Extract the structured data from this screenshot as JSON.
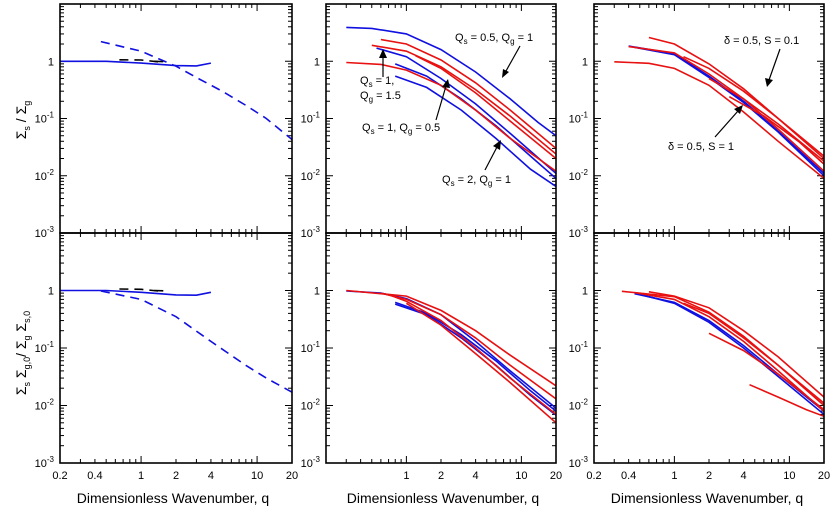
{
  "figure": {
    "xlabel": "Dimensionless Wavenumber, q",
    "ylabel_top": "Σs / Σg",
    "ylabel_bottom": "Σs Σg,0 / Σg Σs,0",
    "colors": {
      "blue": "#1010e0",
      "red": "#e81010",
      "black": "#000000"
    }
  },
  "chart_data": [
    {
      "id": "top-left",
      "type": "line",
      "xscale": "log",
      "yscale": "log",
      "xlim": [
        0.2,
        20
      ],
      "ylim": [
        0.001,
        10
      ],
      "xticks": [],
      "yticks": [
        "10-3",
        "10-2",
        "10-1",
        "1"
      ],
      "series": [
        {
          "style": "solid",
          "color": "blue",
          "x": [
            0.2,
            0.5,
            1,
            2,
            3,
            4
          ],
          "y": [
            1.0,
            1.0,
            0.93,
            0.84,
            0.83,
            0.93
          ]
        },
        {
          "style": "dashed",
          "color": "blue",
          "x": [
            0.45,
            1,
            1.5,
            2,
            3,
            5,
            8,
            12,
            20
          ],
          "y": [
            2.2,
            1.5,
            1.05,
            0.82,
            0.52,
            0.3,
            0.17,
            0.1,
            0.043
          ]
        },
        {
          "style": "dashed",
          "color": "black",
          "x": [
            0.65,
            1,
            1.4
          ],
          "y": [
            1.06,
            1.05,
            0.98
          ]
        },
        {
          "style": "dashed",
          "color": "black",
          "x": [
            1.3,
            1.7
          ],
          "y": [
            1.0,
            0.98
          ]
        }
      ]
    },
    {
      "id": "top-middle",
      "type": "line",
      "xscale": "log",
      "yscale": "log",
      "xlim": [
        0.2,
        20
      ],
      "ylim": [
        0.001,
        10
      ],
      "xticks": [],
      "yticks": [
        "10-3",
        "10-2",
        "10-1",
        "1"
      ],
      "series": [
        {
          "color": "blue",
          "x": [
            0.3,
            0.5,
            1,
            2,
            4,
            8,
            14,
            20
          ],
          "y": [
            3.9,
            3.75,
            3.0,
            1.6,
            0.65,
            0.22,
            0.085,
            0.05
          ]
        },
        {
          "color": "blue",
          "x": [
            0.55,
            1,
            2,
            4,
            8,
            20
          ],
          "y": [
            1.7,
            1.2,
            0.5,
            0.18,
            0.055,
            0.011
          ]
        },
        {
          "color": "blue",
          "x": [
            0.8,
            1.5,
            3,
            6,
            12,
            20
          ],
          "y": [
            0.9,
            0.55,
            0.22,
            0.075,
            0.022,
            0.009
          ]
        },
        {
          "color": "blue",
          "x": [
            0.8,
            1.5,
            3,
            6,
            12,
            20
          ],
          "y": [
            0.55,
            0.35,
            0.14,
            0.045,
            0.013,
            0.0065
          ]
        },
        {
          "color": "red",
          "x": [
            0.3,
            0.6,
            1,
            2,
            4,
            8,
            20
          ],
          "y": [
            0.95,
            0.88,
            0.7,
            0.38,
            0.14,
            0.045,
            0.012
          ]
        },
        {
          "color": "red",
          "x": [
            0.5,
            1,
            2,
            4,
            8,
            20
          ],
          "y": [
            1.9,
            1.5,
            0.8,
            0.32,
            0.11,
            0.024
          ]
        },
        {
          "color": "red",
          "x": [
            0.6,
            1,
            2,
            4,
            8,
            20
          ],
          "y": [
            2.4,
            2.0,
            1.05,
            0.42,
            0.14,
            0.03
          ]
        },
        {
          "color": "red",
          "x": [
            1.2,
            2,
            4,
            8,
            20
          ],
          "y": [
            1.25,
            0.75,
            0.28,
            0.09,
            0.02
          ]
        }
      ],
      "annotations": [
        "Qs = 0.5, Qg = 1",
        "Qs = 1, Qg = 1.5",
        "Qs = 1, Qg = 0.5",
        "Qs = 2, Qg = 1"
      ]
    },
    {
      "id": "top-right",
      "type": "line",
      "xscale": "log",
      "yscale": "log",
      "xlim": [
        0.2,
        20
      ],
      "ylim": [
        0.001,
        10
      ],
      "xticks": [],
      "yticks": [
        "10-3",
        "10-2",
        "10-1",
        "1"
      ],
      "series": [
        {
          "color": "blue",
          "x": [
            0.4,
            1,
            2,
            4,
            8,
            20
          ],
          "y": [
            1.85,
            1.35,
            0.55,
            0.2,
            0.06,
            0.011
          ]
        },
        {
          "color": "blue",
          "x": [
            0.45,
            1,
            2,
            4,
            8,
            20
          ],
          "y": [
            1.75,
            1.3,
            0.52,
            0.19,
            0.058,
            0.01
          ]
        },
        {
          "color": "red",
          "x": [
            0.3,
            0.6,
            1,
            2,
            4,
            8,
            20
          ],
          "y": [
            0.98,
            0.92,
            0.75,
            0.38,
            0.13,
            0.04,
            0.009
          ]
        },
        {
          "color": "red",
          "x": [
            0.4,
            1,
            2,
            4,
            8,
            20
          ],
          "y": [
            1.8,
            1.4,
            0.6,
            0.22,
            0.065,
            0.012
          ]
        },
        {
          "color": "red",
          "x": [
            0.6,
            1,
            2,
            4,
            8,
            20
          ],
          "y": [
            2.6,
            2.0,
            0.9,
            0.33,
            0.1,
            0.02
          ]
        },
        {
          "color": "red",
          "x": [
            1.2,
            2,
            4,
            8,
            20
          ],
          "y": [
            1.2,
            0.75,
            0.3,
            0.1,
            0.022
          ]
        },
        {
          "color": "red",
          "x": [
            2,
            4,
            8,
            20
          ],
          "y": [
            0.5,
            0.22,
            0.08,
            0.018
          ]
        },
        {
          "color": "red",
          "x": [
            3,
            6,
            12,
            20
          ],
          "y": [
            0.24,
            0.11,
            0.04,
            0.016
          ]
        }
      ],
      "annotations": [
        "δ = 0.5, S = 0.1",
        "δ = 0.5, S = 1"
      ]
    },
    {
      "id": "bottom-left",
      "type": "line",
      "xscale": "log",
      "yscale": "log",
      "xlim": [
        0.2,
        20
      ],
      "ylim": [
        0.001,
        10
      ],
      "xticks": [
        "0.2",
        "0.4",
        "1",
        "2",
        "4",
        "10",
        "20"
      ],
      "yticks": [
        "10-3",
        "10-2",
        "10-1",
        "1"
      ],
      "series": [
        {
          "style": "solid",
          "color": "blue",
          "x": [
            0.2,
            0.5,
            1,
            2,
            3,
            4
          ],
          "y": [
            1.0,
            1.0,
            0.93,
            0.84,
            0.83,
            0.93
          ]
        },
        {
          "style": "dashed",
          "color": "blue",
          "x": [
            0.45,
            1,
            2,
            4,
            8,
            12,
            20
          ],
          "y": [
            0.98,
            0.7,
            0.35,
            0.13,
            0.05,
            0.03,
            0.017
          ]
        },
        {
          "style": "dashed",
          "color": "black",
          "x": [
            0.65,
            1,
            1.4
          ],
          "y": [
            1.06,
            1.05,
            0.98
          ]
        },
        {
          "style": "dashed",
          "color": "black",
          "x": [
            1.3,
            1.7
          ],
          "y": [
            1.0,
            0.98
          ]
        }
      ]
    },
    {
      "id": "bottom-middle",
      "type": "line",
      "xscale": "log",
      "yscale": "log",
      "xlim": [
        0.2,
        20
      ],
      "ylim": [
        0.001,
        10
      ],
      "xticks": [
        "1",
        "2",
        "4",
        "10",
        "20"
      ],
      "yticks": [
        "10-3",
        "10-2",
        "10-1",
        "1"
      ],
      "series": [
        {
          "color": "blue",
          "x": [
            0.3,
            0.6,
            1,
            2,
            4,
            8,
            20
          ],
          "y": [
            0.98,
            0.9,
            0.72,
            0.38,
            0.13,
            0.04,
            0.009
          ]
        },
        {
          "color": "blue",
          "x": [
            0.8,
            1.5,
            3,
            6,
            12,
            20
          ],
          "y": [
            0.62,
            0.4,
            0.17,
            0.06,
            0.018,
            0.008
          ]
        },
        {
          "color": "blue",
          "x": [
            0.8,
            1.5,
            3,
            6,
            12,
            20
          ],
          "y": [
            0.58,
            0.38,
            0.15,
            0.05,
            0.015,
            0.0068
          ]
        },
        {
          "color": "red",
          "x": [
            0.3,
            1,
            2,
            4,
            8,
            20
          ],
          "y": [
            1.0,
            0.8,
            0.45,
            0.2,
            0.075,
            0.022
          ]
        },
        {
          "color": "red",
          "x": [
            0.6,
            1,
            2,
            4,
            8,
            20
          ],
          "y": [
            0.9,
            0.7,
            0.38,
            0.15,
            0.05,
            0.013
          ]
        },
        {
          "color": "red",
          "x": [
            0.7,
            1,
            2,
            4,
            8,
            20
          ],
          "y": [
            0.85,
            0.65,
            0.3,
            0.1,
            0.03,
            0.007
          ]
        },
        {
          "color": "red",
          "x": [
            1.0,
            2,
            4,
            8,
            20
          ],
          "y": [
            0.6,
            0.25,
            0.08,
            0.025,
            0.005
          ]
        }
      ]
    },
    {
      "id": "bottom-right",
      "type": "line",
      "xscale": "log",
      "yscale": "log",
      "xlim": [
        0.2,
        20
      ],
      "ylim": [
        0.001,
        10
      ],
      "xticks": [
        "0.2",
        "0.4",
        "1",
        "2",
        "4",
        "10",
        "20"
      ],
      "yticks": [
        "10-3",
        "10-2",
        "10-1",
        "1"
      ],
      "series": [
        {
          "color": "blue",
          "x": [
            0.45,
            1,
            2,
            4,
            8,
            20
          ],
          "y": [
            0.88,
            0.62,
            0.3,
            0.11,
            0.035,
            0.008
          ]
        },
        {
          "color": "blue",
          "x": [
            0.5,
            1,
            2,
            4,
            8,
            20
          ],
          "y": [
            0.86,
            0.6,
            0.28,
            0.1,
            0.032,
            0.007
          ]
        },
        {
          "color": "red",
          "x": [
            0.35,
            1,
            2,
            4,
            8,
            20
          ],
          "y": [
            0.97,
            0.78,
            0.42,
            0.16,
            0.05,
            0.01
          ]
        },
        {
          "color": "red",
          "x": [
            0.45,
            1,
            2,
            4,
            8,
            20
          ],
          "y": [
            0.92,
            0.7,
            0.35,
            0.13,
            0.04,
            0.008
          ]
        },
        {
          "color": "red",
          "x": [
            0.6,
            1,
            2,
            4,
            8,
            20
          ],
          "y": [
            0.95,
            0.8,
            0.5,
            0.2,
            0.07,
            0.014
          ]
        },
        {
          "color": "red",
          "x": [
            1.2,
            2,
            4,
            8,
            20
          ],
          "y": [
            0.6,
            0.4,
            0.15,
            0.05,
            0.011
          ]
        },
        {
          "color": "red",
          "x": [
            2,
            4,
            8,
            20
          ],
          "y": [
            0.18,
            0.09,
            0.035,
            0.0085
          ]
        },
        {
          "color": "red",
          "x": [
            4.5,
            8,
            14,
            20
          ],
          "y": [
            0.023,
            0.014,
            0.0085,
            0.0065
          ]
        }
      ]
    }
  ]
}
